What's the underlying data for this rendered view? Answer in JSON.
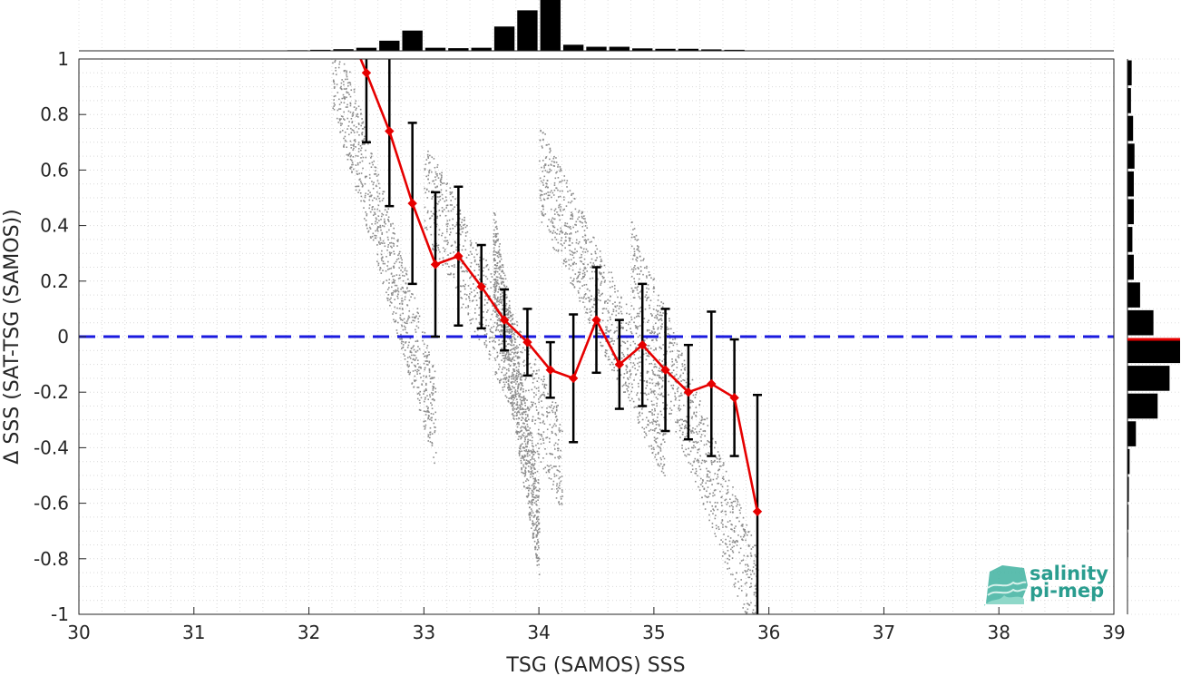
{
  "chart_data": {
    "type": "scatter",
    "xlabel": "TSG (SAMOS) SSS",
    "ylabel": "Δ SSS (SAT-TSG (SAMOS))",
    "xlim": [
      30,
      39
    ],
    "ylim": [
      -1,
      1
    ],
    "xticks": [
      "30",
      "31",
      "32",
      "33",
      "34",
      "35",
      "36",
      "37",
      "38",
      "39"
    ],
    "yticks": [
      "1",
      "0.8",
      "0.6",
      "0.4",
      "0.2",
      "0",
      "-0.2",
      "-0.4",
      "-0.6",
      "-0.8",
      "-1"
    ],
    "grid": true,
    "reference_line": {
      "y": 0,
      "style": "dashed",
      "color": "#1a1adf"
    },
    "scatter_color": "#8c8c8c",
    "scatter_clusters": [
      {
        "x0": 32.2,
        "x1": 33.1,
        "ytop": 1.0,
        "ybot": -0.3
      },
      {
        "x0": 33.0,
        "x1": 34.2,
        "ytop": 0.55,
        "ybot": -0.45
      },
      {
        "x0": 33.6,
        "x1": 34.0,
        "ytop": 0.3,
        "ybot": -0.7
      },
      {
        "x0": 34.0,
        "x1": 35.1,
        "ytop": 0.6,
        "ybot": -0.35
      },
      {
        "x0": 34.8,
        "x1": 35.9,
        "ytop": 0.25,
        "ybot": -0.95
      }
    ],
    "binned_mean": {
      "color": "#e60000",
      "x": [
        32.5,
        32.7,
        32.9,
        33.1,
        33.3,
        33.5,
        33.7,
        33.9,
        34.1,
        34.3,
        34.5,
        34.7,
        34.9,
        35.1,
        35.3,
        35.5,
        35.7,
        35.9
      ],
      "y": [
        0.95,
        0.74,
        0.48,
        0.26,
        0.29,
        0.18,
        0.06,
        -0.02,
        -0.12,
        -0.15,
        0.06,
        -0.1,
        -0.03,
        -0.12,
        -0.2,
        -0.17,
        -0.22,
        -0.63
      ],
      "std": [
        0.25,
        0.27,
        0.29,
        0.26,
        0.25,
        0.15,
        0.11,
        0.12,
        0.1,
        0.23,
        0.19,
        0.16,
        0.22,
        0.22,
        0.17,
        0.26,
        0.21,
        0.42
      ]
    },
    "top_histogram": {
      "x": [
        31.9,
        32.1,
        32.3,
        32.5,
        32.7,
        32.9,
        33.1,
        33.3,
        33.5,
        33.7,
        33.9,
        34.1,
        34.3,
        34.5,
        34.7,
        34.9,
        35.1,
        35.3,
        35.5,
        35.7
      ],
      "counts": [
        0.3,
        0.5,
        0.8,
        1.5,
        5,
        10,
        1.5,
        1.3,
        1.5,
        12,
        20,
        26,
        3,
        2,
        2,
        1.2,
        1,
        1,
        0.7,
        0.5
      ]
    },
    "right_histogram": {
      "y": [
        0.95,
        0.85,
        0.75,
        0.65,
        0.55,
        0.45,
        0.35,
        0.25,
        0.15,
        0.05,
        -0.05,
        -0.15,
        -0.25,
        -0.35,
        -0.45,
        -0.55,
        -0.65,
        -0.75,
        -0.85
      ],
      "counts": [
        0.6,
        0.5,
        0.8,
        1.0,
        0.9,
        0.9,
        0.7,
        0.9,
        1.8,
        3.7,
        7.5,
        6.0,
        4.3,
        1.2,
        0.3,
        0.2,
        0.15,
        0.1,
        0.05
      ],
      "median_marker": -0.01,
      "median_color": "#e60000"
    }
  },
  "logo": {
    "line1": "salinity",
    "line2": "pi-mep"
  }
}
